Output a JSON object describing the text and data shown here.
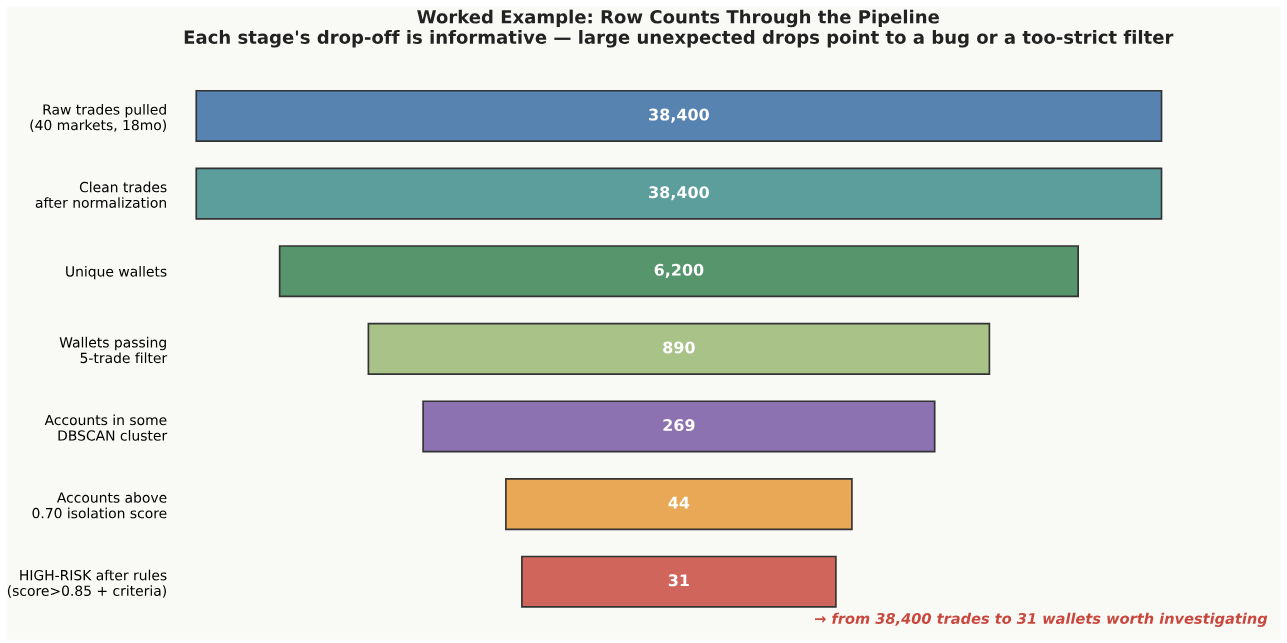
{
  "chart_data": {
    "type": "other",
    "title": "Worked Example: Row Counts Through the Pipeline",
    "subtitle": "Each stage's drop-off is informative — large unexpected drops point to a bug or a too-strict filter",
    "categories": [
      "Raw trades pulled\n(40 markets, 18mo)",
      "Clean trades\nafter normalization",
      "Unique wallets",
      "Wallets passing\n5-trade filter",
      "Accounts in some\nDBSCAN cluster",
      "Accounts above\n0.70 isolation score",
      "HIGH-RISK after rules\n(score>0.85 + criteria)"
    ],
    "values": [
      38400,
      38400,
      6200,
      890,
      269,
      44,
      31
    ],
    "value_labels": [
      "38,400",
      "38,400",
      "6,200",
      "890",
      "269",
      "44",
      "31"
    ],
    "colors": [
      "#5783b0",
      "#5b9e9c",
      "#57966d",
      "#a8c288",
      "#8d72b2",
      "#e9a855",
      "#d0655c"
    ],
    "annotations": [
      "→ from 38,400 trades to 31 wallets worth investigating"
    ]
  }
}
